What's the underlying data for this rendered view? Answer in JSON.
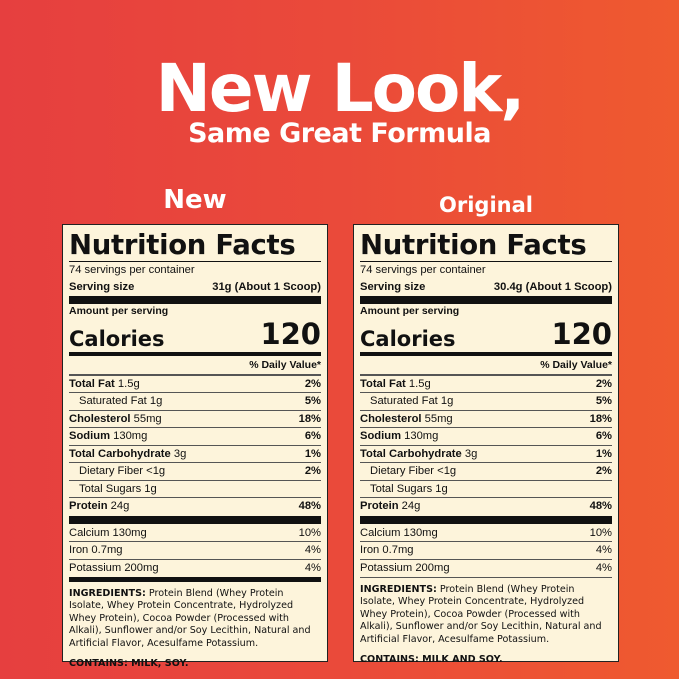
{
  "headline": "New Look,",
  "subheadline": "Same Great Formula",
  "panels": [
    {
      "label": "New",
      "title": "Nutrition Facts",
      "servings": "74 servings per container",
      "serving_size_label": "Serving size",
      "serving_size": "31g (About 1 Scoop)",
      "amount_label": "Amount per serving",
      "calories_label": "Calories",
      "calories": "120",
      "dv_header": "% Daily Value*",
      "nutrients": [
        {
          "name": "Total Fat",
          "amount": "1.5g",
          "dv": "2%",
          "bold": true,
          "indent": false
        },
        {
          "name": "Saturated Fat",
          "amount": "1g",
          "dv": "5%",
          "bold": false,
          "indent": true
        },
        {
          "name": "Cholesterol",
          "amount": "55mg",
          "dv": "18%",
          "bold": true,
          "indent": false
        },
        {
          "name": "Sodium",
          "amount": "130mg",
          "dv": "6%",
          "bold": true,
          "indent": false
        },
        {
          "name": "Total Carbohydrate",
          "amount": "3g",
          "dv": "1%",
          "bold": true,
          "indent": false
        },
        {
          "name": "Dietary Fiber",
          "amount": "<1g",
          "dv": "2%",
          "bold": false,
          "indent": true
        },
        {
          "name": "Total Sugars",
          "amount": "1g",
          "dv": "",
          "bold": false,
          "indent": true
        },
        {
          "name": "Protein",
          "amount": "24g",
          "dv": "48%",
          "bold": true,
          "indent": false
        }
      ],
      "minerals": [
        {
          "name": "Calcium 130mg",
          "dv": "10%"
        },
        {
          "name": "Iron 0.7mg",
          "dv": "4%"
        },
        {
          "name": "Potassium 200mg",
          "dv": "4%"
        }
      ],
      "ingredients_label": "INGREDIENTS:",
      "ingredients": "Protein Blend (Whey Protein Isolate, Whey Protein Concentrate, Hydrolyzed Whey Protein), Cocoa Powder (Processed with Alkali), Sunflower and/or Soy Lecithin, Natural and Artificial Flavor, Acesulfame Potassium.",
      "contains": "CONTAINS: MILK, SOY."
    },
    {
      "label": "Original",
      "title": "Nutrition Facts",
      "servings": "74 servings per container",
      "serving_size_label": "Serving size",
      "serving_size": "30.4g (About 1 Scoop)",
      "amount_label": "Amount per serving",
      "calories_label": "Calories",
      "calories": "120",
      "dv_header": "% Daily Value*",
      "nutrients": [
        {
          "name": "Total Fat",
          "amount": "1.5g",
          "dv": "2%",
          "bold": true,
          "indent": false
        },
        {
          "name": "Saturated Fat",
          "amount": "1g",
          "dv": "5%",
          "bold": false,
          "indent": true
        },
        {
          "name": "Cholesterol",
          "amount": "55mg",
          "dv": "18%",
          "bold": true,
          "indent": false
        },
        {
          "name": "Sodium",
          "amount": "130mg",
          "dv": "6%",
          "bold": true,
          "indent": false
        },
        {
          "name": "Total Carbohydrate",
          "amount": "3g",
          "dv": "1%",
          "bold": true,
          "indent": false
        },
        {
          "name": "Dietary Fiber",
          "amount": "<1g",
          "dv": "2%",
          "bold": false,
          "indent": true
        },
        {
          "name": "Total Sugars",
          "amount": "1g",
          "dv": "",
          "bold": false,
          "indent": true
        },
        {
          "name": "Protein",
          "amount": "24g",
          "dv": "48%",
          "bold": true,
          "indent": false
        }
      ],
      "minerals": [
        {
          "name": "Calcium 130mg",
          "dv": "10%"
        },
        {
          "name": "Iron 0.7mg",
          "dv": "4%"
        },
        {
          "name": "Potassium 200mg",
          "dv": "4%"
        }
      ],
      "ingredients_label": "INGREDIENTS:",
      "ingredients": "Protein Blend (Whey Protein Isolate, Whey Protein Concentrate, Hydrolyzed Whey Protein), Cocoa Powder (Processed with Alkali), Sunflower and/or Soy Lecithin, Natural and Artificial Flavor, Acesulfame Potassium.",
      "contains": "CONTAINS: MILK AND SOY."
    }
  ],
  "colors": {
    "background_left": "#e63f3f",
    "background_right": "#ef5a2f",
    "panel": "#fdf4db"
  }
}
